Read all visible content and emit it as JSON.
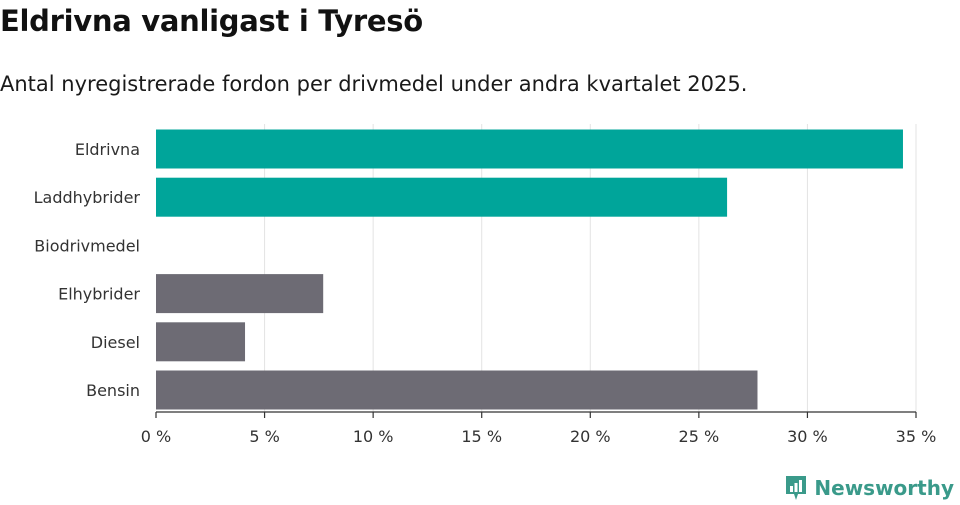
{
  "chart_data": {
    "type": "bar",
    "orientation": "horizontal",
    "title": "Eldrivna vanligast i Tyresö",
    "subtitle": "Antal nyregistrerade fordon per drivmedel under andra kvartalet 2025.",
    "categories": [
      "Eldrivna",
      "Laddhybrider",
      "Biodrivmedel",
      "Elhybrider",
      "Diesel",
      "Bensin"
    ],
    "values": [
      34.4,
      26.3,
      0,
      7.7,
      4.1,
      27.7
    ],
    "bar_colors": [
      "#00a59a",
      "#00a59a",
      "#00a59a",
      "#6d6b74",
      "#6d6b74",
      "#6d6b74"
    ],
    "xlim": [
      0,
      35
    ],
    "xticks": [
      0,
      5,
      10,
      15,
      20,
      25,
      30,
      35
    ],
    "xtick_labels": [
      "0 %",
      "5 %",
      "10 %",
      "15 %",
      "20 %",
      "25 %",
      "30 %",
      "35 %"
    ],
    "grid": true
  },
  "branding": {
    "name": "Newsworthy",
    "color": "#3a9a8a"
  }
}
